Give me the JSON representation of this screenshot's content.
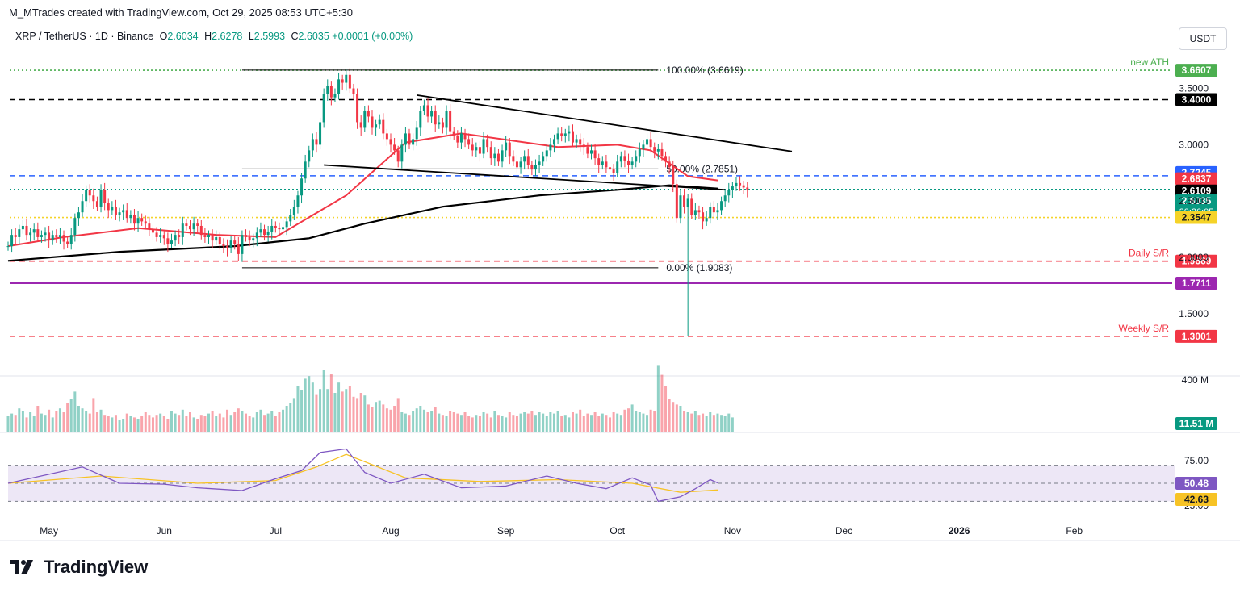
{
  "credit": "M_MTrades created with TradingView.com, Oct 29, 2025 08:53 UTC+5:30",
  "symbol": {
    "name": "XRP / TetherUS · 1D · Binance",
    "o_label": "O",
    "o": "2.6034",
    "h_label": "H",
    "h": "2.6278",
    "l_label": "L",
    "l": "2.5993",
    "c_label": "C",
    "c": "2.6035",
    "change": "+0.0001 (+0.00%)"
  },
  "currency_button": "USDT",
  "brand": {
    "name": "TradingView",
    "icon": "tradingview-logo-icon"
  },
  "colors": {
    "up": "#089981",
    "down": "#f23645",
    "ma_red": "#f23645",
    "ma_black": "#000000",
    "blue_line": "#2962ff",
    "purple_line": "#9c27b0",
    "yellow_line": "#f5d328",
    "ath_green": "#4caf50",
    "rsi_band": "#ede7f6",
    "rsi_line": "#7e57c2",
    "rsi_ma": "#f7c325"
  },
  "chart_data": [
    {
      "type": "candlestick",
      "title": "XRP / TetherUS · 1D · Binance",
      "x_start": "2025-04-20",
      "x_end": "2026-02-28",
      "ylim": [
        1.2,
        3.8
      ],
      "x_ticks": [
        "May",
        "Jun",
        "Jul",
        "Aug",
        "Sep",
        "Oct",
        "Nov",
        "Dec",
        "2026",
        "Feb"
      ],
      "x_tick_dates": [
        "2025-05-01",
        "2025-06-01",
        "2025-07-01",
        "2025-08-01",
        "2025-09-01",
        "2025-10-01",
        "2025-11-01",
        "2025-12-01",
        "2026-01-01",
        "2026-02-01"
      ],
      "y_ticks": [
        "3.5000",
        "3.0000",
        "2.5000",
        "2.0000",
        "1.5000"
      ],
      "y_tick_values": [
        3.5,
        3.0,
        2.5,
        2.0,
        1.5
      ],
      "closes": [
        2.1,
        2.2,
        2.18,
        2.25,
        2.28,
        2.2,
        2.22,
        2.25,
        2.18,
        2.2,
        2.22,
        2.15,
        2.2,
        2.18,
        2.2,
        2.14,
        2.12,
        2.2,
        2.35,
        2.4,
        2.5,
        2.6,
        2.55,
        2.5,
        2.45,
        2.6,
        2.48,
        2.42,
        2.45,
        2.38,
        2.4,
        2.42,
        2.35,
        2.38,
        2.3,
        2.35,
        2.32,
        2.3,
        2.25,
        2.22,
        2.18,
        2.2,
        2.17,
        2.12,
        2.15,
        2.2,
        2.18,
        2.3,
        2.28,
        2.25,
        2.3,
        2.28,
        2.2,
        2.18,
        2.2,
        2.15,
        2.18,
        2.12,
        2.1,
        2.08,
        2.15,
        2.12,
        2.03,
        2.2,
        2.18,
        2.15,
        2.17,
        2.22,
        2.25,
        2.2,
        2.23,
        2.28,
        2.26,
        2.25,
        2.27,
        2.32,
        2.38,
        2.45,
        2.55,
        2.7,
        2.85,
        2.95,
        3.05,
        3.0,
        3.2,
        3.45,
        3.52,
        3.42,
        3.45,
        3.58,
        3.55,
        3.62,
        3.5,
        3.45,
        3.2,
        3.15,
        3.3,
        3.25,
        3.15,
        3.18,
        3.22,
        3.1,
        3.05,
        3.0,
        2.95,
        2.85,
        3.0,
        3.1,
        3.0,
        3.05,
        3.15,
        3.3,
        3.35,
        3.25,
        3.3,
        3.18,
        3.2,
        3.15,
        3.3,
        3.12,
        3.08,
        3.02,
        3.1,
        3.05,
        3.0,
        2.95,
        2.98,
        2.92,
        3.05,
        2.98,
        2.88,
        2.92,
        2.85,
        2.95,
        3.02,
        2.9,
        2.85,
        2.8,
        2.85,
        2.9,
        2.82,
        2.78,
        2.82,
        2.85,
        2.9,
        2.95,
        3.0,
        3.05,
        3.1,
        3.08,
        3.1,
        3.12,
        3.02,
        3.05,
        3.0,
        2.98,
        2.92,
        2.95,
        2.88,
        2.82,
        2.85,
        2.8,
        2.78,
        2.75,
        2.85,
        2.9,
        2.86,
        2.82,
        2.85,
        2.9,
        2.96,
        3.0,
        3.05,
        2.98,
        2.94,
        2.96,
        2.9,
        2.85,
        2.8,
        2.65,
        2.35,
        2.55,
        2.45,
        2.52,
        2.38,
        2.42,
        2.4,
        2.32,
        2.35,
        2.45,
        2.4,
        2.42,
        2.5,
        2.55,
        2.6,
        2.63,
        2.66,
        2.64,
        2.62,
        2.6035
      ],
      "close_dates": [
        "2025-04-20",
        "2025-10-28"
      ],
      "horizontal_levels": [
        {
          "value": 3.6607,
          "label": "3.6607",
          "note": "new ATH",
          "color": "#4caf50",
          "style": "dotted"
        },
        {
          "value": 3.4,
          "label": "3.4000",
          "color": "#000000",
          "style": "dashed"
        },
        {
          "value": 2.7245,
          "label": "2.7245",
          "color": "#2962ff",
          "style": "dashed"
        },
        {
          "value": 2.6837,
          "label": "2.6837",
          "color": "#f23645",
          "style": "none"
        },
        {
          "value": 2.6109,
          "label": "2.6109",
          "color": "#000000",
          "style": "none"
        },
        {
          "value": 2.6035,
          "label": "2.6035",
          "sublabel": "20:36:05",
          "color": "#089981",
          "style": "dotted"
        },
        {
          "value": 2.3547,
          "label": "2.3547",
          "color": "#f5d328",
          "style": "dotted"
        },
        {
          "value": 1.9669,
          "label": "1.9669",
          "note": "Daily S/R",
          "color": "#f23645",
          "style": "dashed"
        },
        {
          "value": 1.7711,
          "label": "1.7711",
          "color": "#9c27b0",
          "style": "solid"
        },
        {
          "value": 1.3001,
          "label": "1.3001",
          "note": "Weekly S/R",
          "color": "#f23645",
          "style": "dashed"
        }
      ],
      "fib_levels": [
        {
          "value": 3.6619,
          "label": "100.00% (3.6619)"
        },
        {
          "value": 2.7851,
          "label": "50.00% (2.7851)"
        },
        {
          "value": 1.9083,
          "label": "0.00% (1.9083)"
        }
      ],
      "fib_range_dates": [
        "2025-06-22",
        "2025-10-12"
      ],
      "trendlines": [
        {
          "from": [
            "2025-08-08",
            3.44
          ],
          "to": [
            "2025-11-17",
            2.94
          ],
          "color": "#000000"
        },
        {
          "from": [
            "2025-07-14",
            2.82
          ],
          "to": [
            "2025-10-30",
            2.6
          ],
          "color": "#000000"
        }
      ],
      "ma_red_dates": [
        "2025-04-20",
        "2025-05-05",
        "2025-05-25",
        "2025-06-15",
        "2025-07-01",
        "2025-07-20",
        "2025-08-05",
        "2025-08-20",
        "2025-09-15",
        "2025-10-01",
        "2025-10-10",
        "2025-10-20",
        "2025-10-28"
      ],
      "ma_red_values": [
        2.1,
        2.18,
        2.26,
        2.2,
        2.18,
        2.55,
        3.02,
        3.1,
        2.98,
        3.0,
        2.95,
        2.72,
        2.6837
      ],
      "ma_black_dates": [
        "2025-04-20",
        "2025-05-20",
        "2025-06-20",
        "2025-07-10",
        "2025-07-25",
        "2025-08-15",
        "2025-09-10",
        "2025-10-01",
        "2025-10-15",
        "2025-10-28"
      ],
      "ma_black_values": [
        1.97,
        2.05,
        2.1,
        2.17,
        2.3,
        2.45,
        2.55,
        2.6,
        2.64,
        2.6109
      ]
    },
    {
      "type": "bar",
      "title": "Volume",
      "y_ticks": [
        "400 M"
      ],
      "y_tick_values": [
        400
      ],
      "current": "11.51 M",
      "values": [
        120,
        140,
        130,
        180,
        160,
        110,
        150,
        120,
        200,
        140,
        130,
        170,
        110,
        160,
        180,
        150,
        220,
        250,
        310,
        200,
        180,
        160,
        140,
        260,
        150,
        170,
        130,
        120,
        110,
        130,
        90,
        100,
        140,
        120,
        110,
        100,
        120,
        150,
        130,
        110,
        130,
        140,
        120,
        100,
        160,
        140,
        130,
        170,
        120,
        150,
        110,
        100,
        130,
        120,
        140,
        160,
        120,
        140,
        110,
        170,
        130,
        150,
        180,
        160,
        140,
        120,
        110,
        150,
        170,
        130,
        140,
        160,
        120,
        150,
        170,
        200,
        220,
        260,
        350,
        320,
        410,
        430,
        380,
        290,
        330,
        480,
        330,
        450,
        300,
        380,
        310,
        330,
        350,
        270,
        260,
        300,
        280,
        210,
        190,
        230,
        240,
        210,
        180,
        170,
        200,
        260,
        150,
        140,
        130,
        160,
        180,
        200,
        170,
        150,
        160,
        190,
        140,
        130,
        120,
        160,
        150,
        140,
        130,
        150,
        120,
        110,
        130,
        120,
        150,
        140,
        110,
        160,
        130,
        120,
        110,
        150,
        130,
        120,
        140,
        150,
        140,
        160,
        130,
        150,
        140,
        120,
        150,
        140,
        160,
        120,
        130,
        110,
        150,
        140,
        170,
        120,
        140,
        130,
        150,
        120,
        140,
        130,
        110,
        150,
        140,
        130,
        170,
        180,
        210,
        160,
        150,
        140,
        130,
        170,
        160,
        510,
        440,
        350,
        250,
        230,
        210,
        200,
        160,
        150,
        140,
        160,
        130,
        140,
        120,
        150,
        130,
        140,
        130,
        120,
        140,
        110
      ],
      "value_dates": [
        "2025-04-20",
        "2025-10-28"
      ]
    },
    {
      "type": "line",
      "title": "RSI",
      "ylim": [
        15,
        100
      ],
      "y_ticks": [
        "75.00",
        "25.00"
      ],
      "y_tick_values": [
        75,
        25
      ],
      "bands": [
        70,
        50,
        30
      ],
      "rsi_dates": [
        "2025-04-20",
        "2025-05-10",
        "2025-05-20",
        "2025-06-01",
        "2025-06-10",
        "2025-06-22",
        "2025-07-01",
        "2025-07-08",
        "2025-07-13",
        "2025-07-20",
        "2025-07-25",
        "2025-08-01",
        "2025-08-10",
        "2025-08-20",
        "2025-09-01",
        "2025-09-12",
        "2025-09-20",
        "2025-09-28",
        "2025-10-05",
        "2025-10-10",
        "2025-10-12",
        "2025-10-18",
        "2025-10-22",
        "2025-10-26",
        "2025-10-28"
      ],
      "rsi_values": [
        50,
        68,
        50,
        49,
        45,
        42,
        55,
        64,
        84,
        88,
        62,
        50,
        60,
        45,
        47,
        58,
        50,
        44,
        56,
        48,
        30,
        35,
        44,
        54,
        50.48
      ],
      "rsi_ma_dates": [
        "2025-04-20",
        "2025-05-15",
        "2025-06-10",
        "2025-07-01",
        "2025-07-12",
        "2025-07-20",
        "2025-08-05",
        "2025-08-25",
        "2025-09-15",
        "2025-10-05",
        "2025-10-18",
        "2025-10-28"
      ],
      "rsi_ma_values": [
        50,
        58,
        50,
        53,
        68,
        82,
        56,
        52,
        54,
        50,
        40,
        42.63
      ],
      "rsi_label": "50.48",
      "rsi_ma_label": "42.63"
    }
  ]
}
